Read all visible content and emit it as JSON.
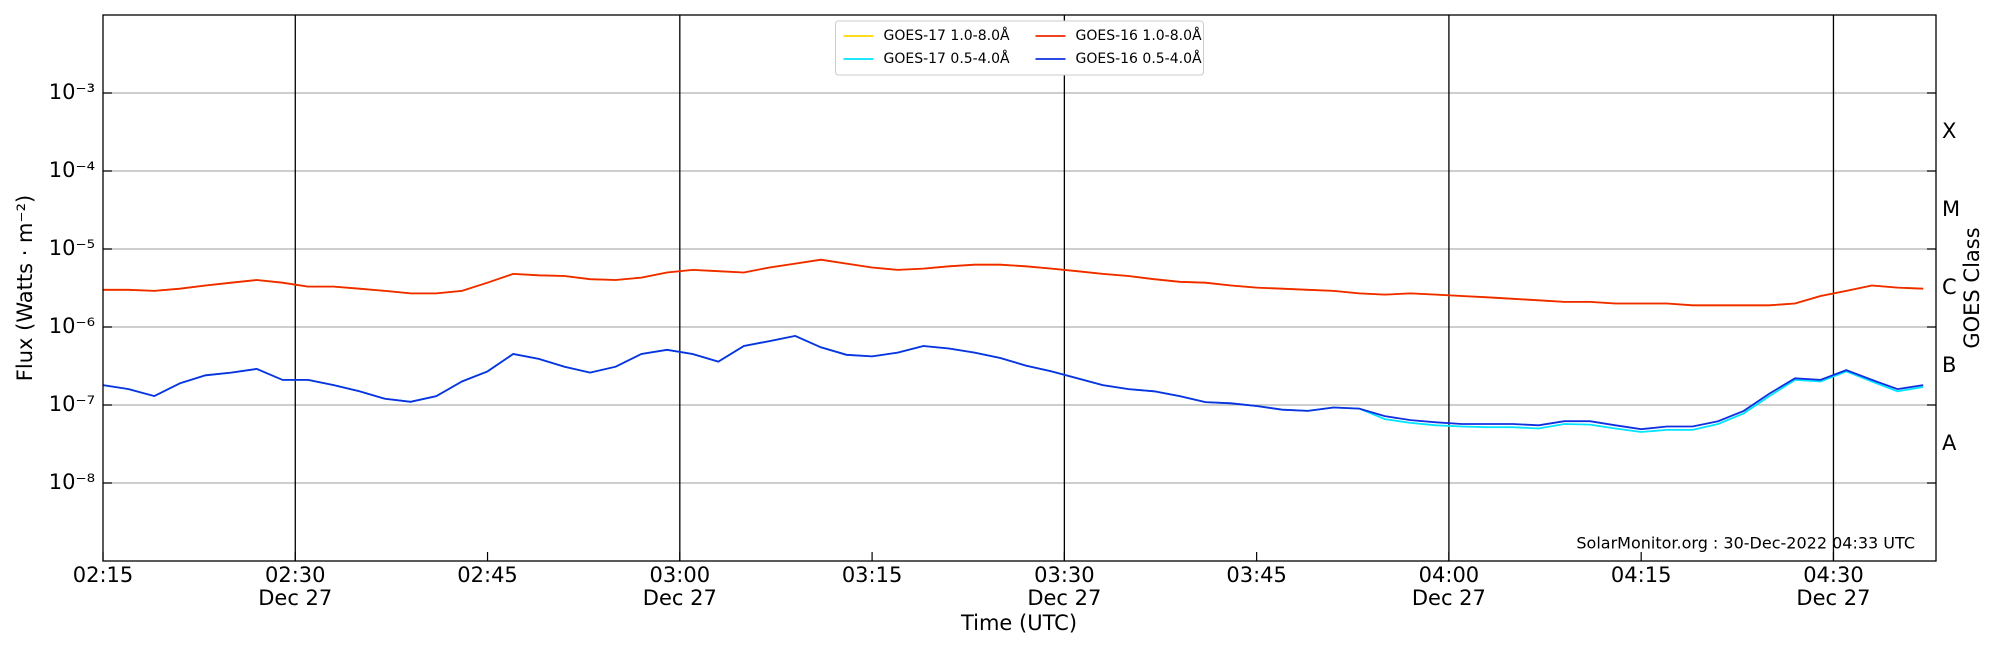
{
  "chart_data": {
    "type": "line",
    "ylabel": "Flux (Watts · m⁻²)",
    "xlabel": "Time (UTC)",
    "y2label": "GOES Class",
    "annotation": "SolarMonitor.org : 30-Dec-2022 04:33 UTC",
    "log_y": true,
    "grid": true,
    "legend": "upper center",
    "x": [
      "02:15",
      "02:17",
      "02:19",
      "02:21",
      "02:23",
      "02:25",
      "02:27",
      "02:29",
      "02:31",
      "02:33",
      "02:35",
      "02:37",
      "02:39",
      "02:41",
      "02:43",
      "02:45",
      "02:47",
      "02:49",
      "02:51",
      "02:53",
      "02:55",
      "02:57",
      "02:59",
      "03:01",
      "03:03",
      "03:05",
      "03:07",
      "03:09",
      "03:11",
      "03:13",
      "03:15",
      "03:17",
      "03:19",
      "03:21",
      "03:23",
      "03:25",
      "03:27",
      "03:29",
      "03:31",
      "03:33",
      "03:35",
      "03:37",
      "03:39",
      "03:41",
      "03:43",
      "03:45",
      "03:47",
      "03:49",
      "03:51",
      "03:53",
      "03:55",
      "03:57",
      "03:59",
      "04:01",
      "04:03",
      "04:05",
      "04:07",
      "04:09",
      "04:11",
      "04:13",
      "04:15",
      "04:17",
      "04:19",
      "04:21",
      "04:23",
      "04:25",
      "04:27",
      "04:29",
      "04:31",
      "04:33",
      "04:35",
      "04:37"
    ],
    "series": [
      {
        "name": "GOES-17 1.0-8.0Å",
        "color": "#ffd700",
        "values": [
          3e-06,
          3e-06,
          2.9e-06,
          3.1e-06,
          3.4e-06,
          3.7e-06,
          4e-06,
          3.7e-06,
          3.3e-06,
          3.3e-06,
          3.1e-06,
          2.9e-06,
          2.7e-06,
          2.7e-06,
          2.9e-06,
          3.7e-06,
          4.8e-06,
          4.6e-06,
          4.5e-06,
          4.1e-06,
          4e-06,
          4.3e-06,
          5e-06,
          5.4e-06,
          5.2e-06,
          5e-06,
          5.8e-06,
          6.5e-06,
          7.3e-06,
          6.5e-06,
          5.8e-06,
          5.4e-06,
          5.6e-06,
          6e-06,
          6.3e-06,
          6.3e-06,
          6e-06,
          5.6e-06,
          5.2e-06,
          4.8e-06,
          4.5e-06,
          4.1e-06,
          3.8e-06,
          3.7e-06,
          3.4e-06,
          3.2e-06,
          3.1e-06,
          3e-06,
          2.9e-06,
          2.7e-06,
          2.6e-06,
          2.7e-06,
          2.6e-06,
          2.5e-06,
          2.4e-06,
          2.3e-06,
          2.2e-06,
          2.1e-06,
          2.1e-06,
          2e-06,
          2e-06,
          2e-06,
          1.9e-06,
          1.9e-06,
          1.9e-06,
          1.9e-06,
          2e-06,
          2.5e-06,
          2.9e-06,
          3.4e-06,
          3.2e-06,
          3.1e-06
        ]
      },
      {
        "name": "GOES-17 0.5-4.0Å",
        "color": "#00e5ff",
        "values": [
          1.8e-07,
          1.6e-07,
          1.3e-07,
          1.9e-07,
          2.4e-07,
          2.6e-07,
          2.9e-07,
          2.1e-07,
          2.1e-07,
          1.8e-07,
          1.5e-07,
          1.2e-07,
          1.1e-07,
          1.3e-07,
          2e-07,
          2.7e-07,
          4.5e-07,
          3.9e-07,
          3.1e-07,
          2.6e-07,
          3.1e-07,
          4.5e-07,
          5.1e-07,
          4.5e-07,
          3.6e-07,
          5.7e-07,
          6.6e-07,
          7.7e-07,
          5.5e-07,
          4.4e-07,
          4.2e-07,
          4.7e-07,
          5.7e-07,
          5.3e-07,
          4.7e-07,
          4e-07,
          3.2e-07,
          2.7e-07,
          2.2e-07,
          1.8e-07,
          1.6e-07,
          1.5e-07,
          1.3e-07,
          1.09e-07,
          1.05e-07,
          9.7e-08,
          8.7e-08,
          8.4e-08,
          9.3e-08,
          9e-08,
          6.6e-08,
          5.9e-08,
          5.5e-08,
          5.3e-08,
          5.2e-08,
          5.2e-08,
          5e-08,
          5.7e-08,
          5.6e-08,
          5e-08,
          4.5e-08,
          4.8e-08,
          4.8e-08,
          5.7e-08,
          7.8e-08,
          1.3e-07,
          2.1e-07,
          2e-07,
          2.7e-07,
          2e-07,
          1.5e-07,
          1.7e-07
        ]
      },
      {
        "name": "GOES-16 1.0-8.0Å",
        "color": "#f02800",
        "values": [
          3e-06,
          3e-06,
          2.9e-06,
          3.1e-06,
          3.4e-06,
          3.7e-06,
          4e-06,
          3.7e-06,
          3.3e-06,
          3.3e-06,
          3.1e-06,
          2.9e-06,
          2.7e-06,
          2.7e-06,
          2.9e-06,
          3.7e-06,
          4.8e-06,
          4.6e-06,
          4.5e-06,
          4.1e-06,
          4e-06,
          4.3e-06,
          5e-06,
          5.4e-06,
          5.2e-06,
          5e-06,
          5.8e-06,
          6.5e-06,
          7.3e-06,
          6.5e-06,
          5.8e-06,
          5.4e-06,
          5.6e-06,
          6e-06,
          6.3e-06,
          6.3e-06,
          6e-06,
          5.6e-06,
          5.2e-06,
          4.8e-06,
          4.5e-06,
          4.1e-06,
          3.8e-06,
          3.7e-06,
          3.4e-06,
          3.2e-06,
          3.1e-06,
          3e-06,
          2.9e-06,
          2.7e-06,
          2.6e-06,
          2.7e-06,
          2.6e-06,
          2.5e-06,
          2.4e-06,
          2.3e-06,
          2.2e-06,
          2.1e-06,
          2.1e-06,
          2e-06,
          2e-06,
          2e-06,
          1.9e-06,
          1.9e-06,
          1.9e-06,
          1.9e-06,
          2e-06,
          2.5e-06,
          2.9e-06,
          3.4e-06,
          3.2e-06,
          3.1e-06
        ]
      },
      {
        "name": "GOES-16 0.5-4.0Å",
        "color": "#1030e0",
        "values": [
          1.8e-07,
          1.6e-07,
          1.3e-07,
          1.9e-07,
          2.4e-07,
          2.6e-07,
          2.9e-07,
          2.1e-07,
          2.1e-07,
          1.8e-07,
          1.5e-07,
          1.2e-07,
          1.1e-07,
          1.3e-07,
          2e-07,
          2.7e-07,
          4.5e-07,
          3.9e-07,
          3.1e-07,
          2.6e-07,
          3.1e-07,
          4.5e-07,
          5.1e-07,
          4.5e-07,
          3.6e-07,
          5.7e-07,
          6.6e-07,
          7.7e-07,
          5.5e-07,
          4.4e-07,
          4.2e-07,
          4.7e-07,
          5.7e-07,
          5.3e-07,
          4.7e-07,
          4e-07,
          3.2e-07,
          2.7e-07,
          2.2e-07,
          1.8e-07,
          1.6e-07,
          1.5e-07,
          1.3e-07,
          1.09e-07,
          1.05e-07,
          9.7e-08,
          8.7e-08,
          8.4e-08,
          9.3e-08,
          9e-08,
          7.2e-08,
          6.4e-08,
          6e-08,
          5.7e-08,
          5.7e-08,
          5.7e-08,
          5.5e-08,
          6.2e-08,
          6.2e-08,
          5.5e-08,
          4.9e-08,
          5.3e-08,
          5.3e-08,
          6.2e-08,
          8.4e-08,
          1.4e-07,
          2.2e-07,
          2.1e-07,
          2.8e-07,
          2.1e-07,
          1.6e-07,
          1.8e-07
        ]
      }
    ],
    "xlim": [
      "02:15",
      "04:38"
    ],
    "xticks": [
      "02:15",
      {
        "value": "02:30",
        "label": "02:30",
        "date": "Dec 27"
      },
      "02:45",
      {
        "value": "03:00",
        "label": "03:00",
        "date": "Dec 27"
      },
      "03:15",
      {
        "value": "03:30",
        "label": "03:30",
        "date": "Dec 27"
      },
      "03:45",
      {
        "value": "04:00",
        "label": "04:00",
        "date": "Dec 27"
      },
      "04:15",
      {
        "value": "04:30",
        "label": "04:30",
        "date": "Dec 27"
      }
    ],
    "ylim": [
      1e-09,
      0.01
    ],
    "yticks": [
      {
        "value": 1e-08,
        "label": "10⁻⁸"
      },
      {
        "value": 1e-07,
        "label": "10⁻⁷"
      },
      {
        "value": 1e-06,
        "label": "10⁻⁶"
      },
      {
        "value": 1e-05,
        "label": "10⁻⁵"
      },
      {
        "value": 0.0001,
        "label": "10⁻⁴"
      },
      {
        "value": 0.001,
        "label": "10⁻³"
      }
    ],
    "goes_classes": [
      {
        "label": "A",
        "value": 1e-08
      },
      {
        "label": "B",
        "value": 1e-07
      },
      {
        "label": "C",
        "value": 1e-06
      },
      {
        "label": "M",
        "value": 1e-05
      },
      {
        "label": "X",
        "value": 0.0001
      }
    ]
  }
}
